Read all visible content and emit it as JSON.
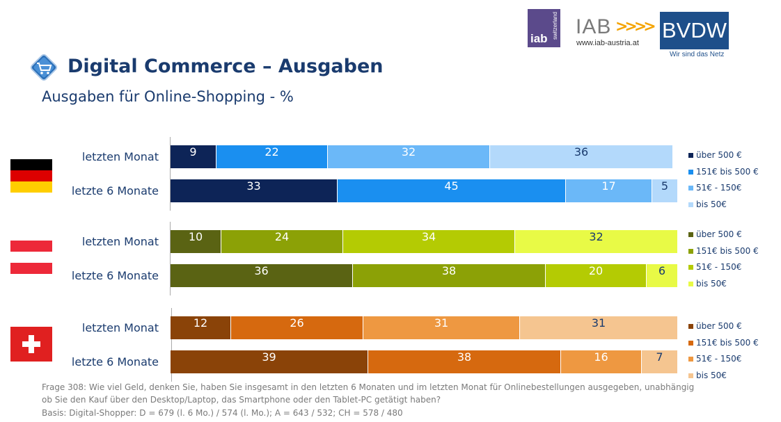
{
  "header": {
    "title": "Digital Commerce – Ausgaben",
    "subtitle": "Ausgaben für Online-Shopping - %",
    "icon": "shopping-cart-icon"
  },
  "logos": {
    "iab_switzerland": {
      "big": "iab",
      "vertical": "switzerland"
    },
    "iab_austria": {
      "big": "IAB",
      "arrows": ">>>>",
      "url": "www.iab-austria.at"
    },
    "bvdw": {
      "big": "BVDW",
      "tagline": "Wir sind das Netz"
    }
  },
  "chart_data": {
    "type": "bar",
    "orientation": "horizontal",
    "stacked": true,
    "xlim": [
      0,
      100
    ],
    "groups": [
      {
        "country": "Deutschland",
        "flag": "germany-flag",
        "colors": [
          "#0d2457",
          "#1a8ff0",
          "#6bb8f8",
          "#b3d9fb"
        ],
        "text_colors": [
          "#ffffff",
          "#ffffff",
          "#ffffff",
          "#1a3b6e"
        ],
        "legend": [
          "über 500 €",
          "151€ bis 500 €",
          "51€ - 150€",
          "bis 50€"
        ],
        "rows": [
          {
            "label": "letzten Monat",
            "values": [
              9,
              22,
              32,
              36
            ]
          },
          {
            "label": "letzte 6 Monate",
            "values": [
              33,
              45,
              17,
              5
            ]
          }
        ]
      },
      {
        "country": "Österreich",
        "flag": "austria-flag",
        "colors": [
          "#5a6313",
          "#8ca106",
          "#b4cb03",
          "#e8fa46"
        ],
        "text_colors": [
          "#ffffff",
          "#ffffff",
          "#ffffff",
          "#1a3b6e"
        ],
        "legend": [
          "über 500 €",
          "151€ bis 500 €",
          "51€ - 150€",
          "bis 50€"
        ],
        "rows": [
          {
            "label": "letzten Monat",
            "values": [
              10,
              24,
              34,
              32
            ]
          },
          {
            "label": "letzte 6 Monate",
            "values": [
              36,
              38,
              20,
              6
            ]
          }
        ]
      },
      {
        "country": "Schweiz",
        "flag": "switzerland-flag",
        "colors": [
          "#8a4308",
          "#d6690f",
          "#ee9841",
          "#f5c590"
        ],
        "text_colors": [
          "#ffffff",
          "#ffffff",
          "#ffffff",
          "#1a3b6e"
        ],
        "legend": [
          "über 500 €",
          "151€ bis 500 €",
          "51€ - 150€",
          "bis 50€"
        ],
        "rows": [
          {
            "label": "letzten Monat",
            "values": [
              12,
              26,
              31,
              31
            ]
          },
          {
            "label": "letzte 6 Monate",
            "values": [
              39,
              38,
              16,
              7
            ]
          }
        ]
      }
    ]
  },
  "footnote": {
    "line1": "Frage 308: Wie viel Geld, denken Sie, haben Sie insgesamt in den letzten 6 Monaten und im letzten Monat für Onlinebestellungen ausgegeben, unabhängig",
    "line2": "ob Sie den Kauf über den Desktop/Laptop, das Smartphone oder den Tablet-PC getätigt haben?",
    "line3": "Basis: Digital-Shopper: D = 679 (l. 6 Mo.) / 574 (l. Mo.); A = 643 / 532; CH = 578 / 480"
  }
}
